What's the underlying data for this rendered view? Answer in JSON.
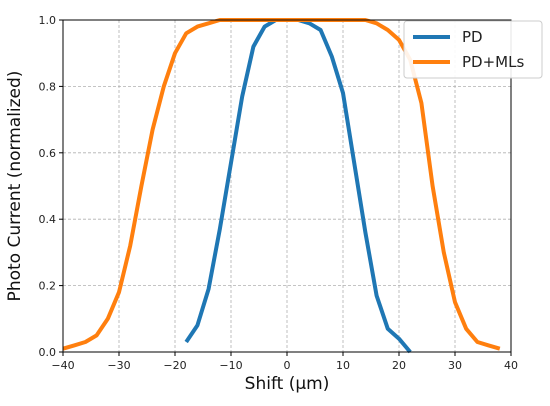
{
  "chart_data": {
    "type": "line",
    "xlabel": "Shift (µm)",
    "ylabel": "Photo Current (normalized)",
    "xlim": [
      -40,
      40
    ],
    "ylim": [
      0,
      1.0
    ],
    "xticks": [
      -40,
      -30,
      -20,
      -10,
      0,
      10,
      20,
      30,
      40
    ],
    "yticks": [
      0.0,
      0.2,
      0.4,
      0.6,
      0.8,
      1.0
    ],
    "xtick_labels": [
      "−40",
      "−30",
      "−20",
      "−10",
      "0",
      "10",
      "20",
      "30",
      "40"
    ],
    "ytick_labels": [
      "0.0",
      "0.2",
      "0.4",
      "0.6",
      "0.8",
      "1.0"
    ],
    "grid": true,
    "legend": "top-right",
    "series": [
      {
        "name": "PD",
        "color": "#1f77b4",
        "x": [
          -18,
          -16,
          -14,
          -12,
          -10,
          -8,
          -6,
          -4,
          -2,
          0,
          2,
          4,
          6,
          8,
          10,
          12,
          14,
          16,
          18,
          20,
          22
        ],
        "y": [
          0.03,
          0.08,
          0.19,
          0.37,
          0.57,
          0.77,
          0.92,
          0.98,
          1.0,
          1.0,
          1.0,
          0.99,
          0.97,
          0.89,
          0.78,
          0.57,
          0.36,
          0.17,
          0.07,
          0.04,
          0.0
        ]
      },
      {
        "name": "PD+MLs",
        "color": "#ff7f0e",
        "x": [
          -40,
          -38,
          -36,
          -34,
          -32,
          -30,
          -28,
          -26,
          -24,
          -22,
          -20,
          -18,
          -16,
          -14,
          -12,
          -10,
          -8,
          -6,
          -4,
          -2,
          0,
          2,
          4,
          6,
          8,
          10,
          12,
          14,
          16,
          18,
          20,
          22,
          24,
          26,
          28,
          30,
          32,
          34,
          36,
          38
        ],
        "y": [
          0.01,
          0.02,
          0.03,
          0.05,
          0.1,
          0.18,
          0.32,
          0.5,
          0.67,
          0.8,
          0.9,
          0.96,
          0.98,
          0.99,
          1.0,
          1.0,
          1.0,
          1.0,
          1.0,
          1.0,
          1.0,
          1.0,
          1.0,
          1.0,
          1.0,
          1.0,
          1.0,
          1.0,
          0.99,
          0.97,
          0.94,
          0.88,
          0.75,
          0.5,
          0.3,
          0.15,
          0.07,
          0.03,
          0.02,
          0.01
        ]
      }
    ]
  }
}
